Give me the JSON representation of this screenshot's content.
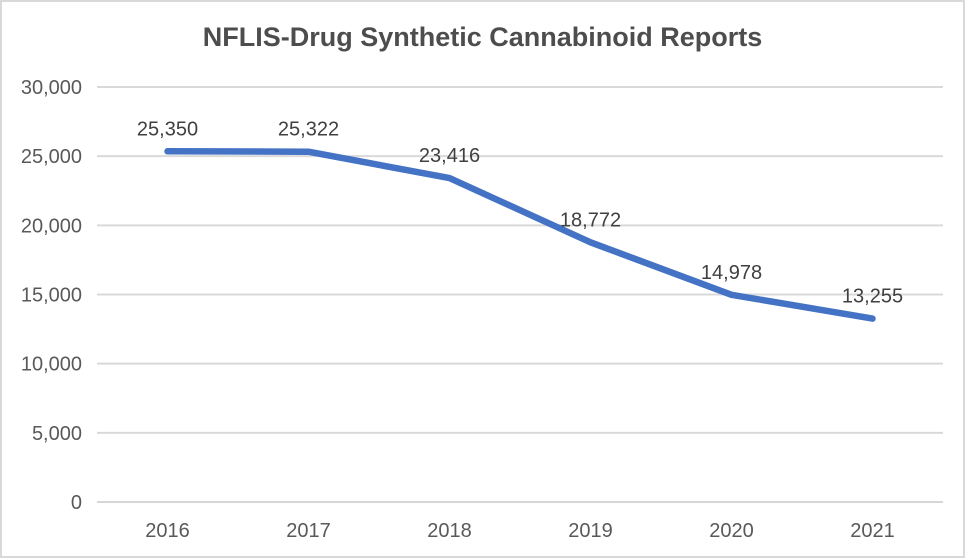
{
  "window": {
    "background_color": "#ffffff",
    "border_color": "#d9d9d9"
  },
  "chart_data": {
    "type": "line",
    "title": "NFLIS-Drug Synthetic Cannabinoid Reports",
    "categories": [
      "2016",
      "2017",
      "2018",
      "2019",
      "2020",
      "2021"
    ],
    "series": [
      {
        "name": "NFLIS-Drug Synthetic Cannabinoid Reports",
        "values": [
          25350,
          25322,
          23416,
          18772,
          14978,
          13255
        ]
      }
    ],
    "data_labels": [
      "25,350",
      "25,322",
      "23,416",
      "18,772",
      "14,978",
      "13,255"
    ],
    "xlabel": "",
    "ylabel": "",
    "ylim": [
      0,
      30000
    ],
    "y_tick_interval": 5000,
    "y_tick_labels": [
      "0",
      "5,000",
      "10,000",
      "15,000",
      "20,000",
      "25,000",
      "30,000"
    ],
    "grid": "horizontal",
    "legend_position": "none",
    "colors": {
      "line": "#4472C4",
      "title_text": "#4d4d4d",
      "axis_tick_text": "#595959",
      "data_label_text": "#404040",
      "gridline": "#d9d9d9",
      "axis_line": "#d6d6d6"
    }
  }
}
